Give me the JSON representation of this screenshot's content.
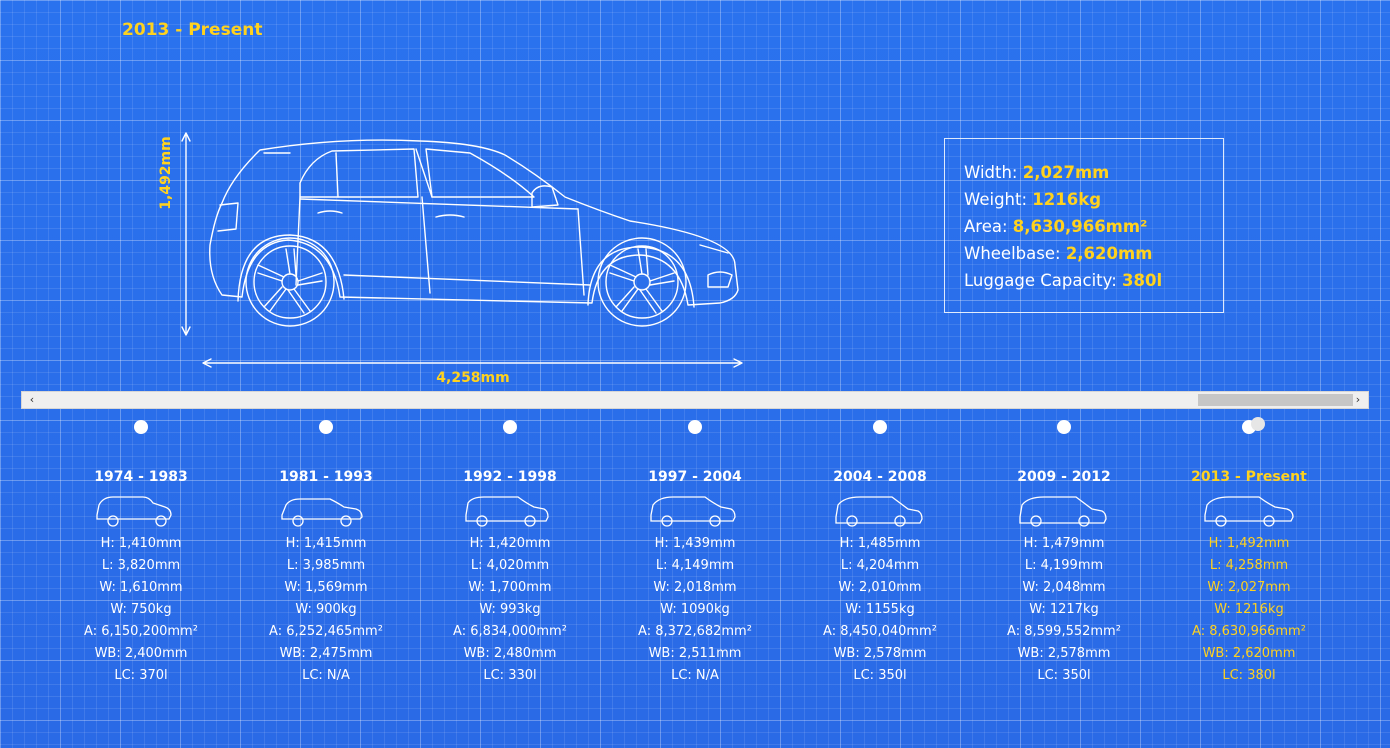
{
  "header": {
    "era_title": "2013 - Present"
  },
  "main_car": {
    "height_label": "1,492mm",
    "length_label": "4,258mm"
  },
  "specs": {
    "width_label": "Width:",
    "width_value": "2,027mm",
    "weight_label": "Weight:",
    "weight_value": "1216kg",
    "area_label": "Area:",
    "area_value": "8,630,966mm²",
    "wheelbase_label": "Wheelbase:",
    "wheelbase_value": "2,620mm",
    "luggage_label": "Luggage Capacity:",
    "luggage_value": "380l"
  },
  "scrollbar": {
    "left_arrow": "‹",
    "right_arrow": "›"
  },
  "accent_color": "#ffd21e",
  "background_color": "#2b6fea",
  "eras": [
    {
      "years": "1974 - 1983",
      "h": "H: 1,410mm",
      "l": "L: 3,820mm",
      "w": "W: 1,610mm",
      "wt": "W: 750kg",
      "a": "A: 6,150,200mm²",
      "wb": "WB: 2,400mm",
      "lc": "LC: 370l"
    },
    {
      "years": "1981 - 1993",
      "h": "H: 1,415mm",
      "l": "L: 3,985mm",
      "w": "W: 1,569mm",
      "wt": "W: 900kg",
      "a": "A: 6,252,465mm²",
      "wb": "WB: 2,475mm",
      "lc": "LC: N/A"
    },
    {
      "years": "1992 - 1998",
      "h": "H: 1,420mm",
      "l": "L: 4,020mm",
      "w": "W: 1,700mm",
      "wt": "W: 993kg",
      "a": "A: 6,834,000mm²",
      "wb": "WB: 2,480mm",
      "lc": "LC: 330l"
    },
    {
      "years": "1997 - 2004",
      "h": "H: 1,439mm",
      "l": "L: 4,149mm",
      "w": "W: 2,018mm",
      "wt": "W: 1090kg",
      "a": "A: 8,372,682mm²",
      "wb": "WB: 2,511mm",
      "lc": "LC: N/A"
    },
    {
      "years": "2004 - 2008",
      "h": "H: 1,485mm",
      "l": "L: 4,204mm",
      "w": "W: 2,010mm",
      "wt": "W: 1155kg",
      "a": "A: 8,450,040mm²",
      "wb": "WB: 2,578mm",
      "lc": "LC: 350l"
    },
    {
      "years": "2009 - 2012",
      "h": "H: 1,479mm",
      "l": "L: 4,199mm",
      "w": "W: 2,048mm",
      "wt": "W: 1217kg",
      "a": "A: 8,599,552mm²",
      "wb": "WB: 2,578mm",
      "lc": "LC: 350l"
    },
    {
      "years": "2013 - Present",
      "h": "H: 1,492mm",
      "l": "L: 4,258mm",
      "w": "W: 2,027mm",
      "wt": "W: 1216kg",
      "a": "A: 8,630,966mm²",
      "wb": "WB: 2,620mm",
      "lc": "LC: 380l"
    }
  ]
}
